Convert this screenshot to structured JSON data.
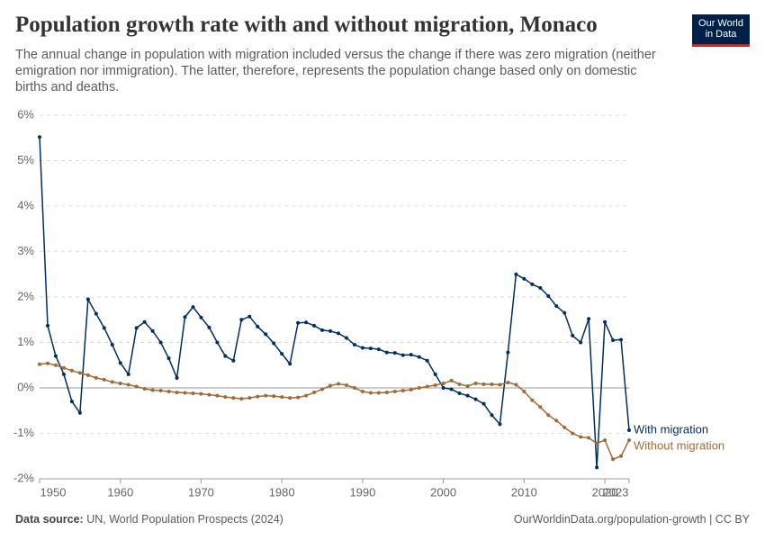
{
  "chart_data": {
    "type": "line",
    "title": "Population growth rate with and without migration, Monaco",
    "subtitle": "The annual change in population with migration included versus the change if there was zero migration (neither emigration nor immigration). The latter, therefore, represents the population change based only on domestic births and deaths.",
    "logo": [
      "Our World",
      "in Data"
    ],
    "source_label": "Data source:",
    "source": "UN, World Population Prospects (2024)",
    "credit": "OurWorldinData.org/population-growth | CC BY",
    "x": [
      1950,
      1951,
      1952,
      1953,
      1954,
      1955,
      1956,
      1957,
      1958,
      1959,
      1960,
      1961,
      1962,
      1963,
      1964,
      1965,
      1966,
      1967,
      1968,
      1969,
      1970,
      1971,
      1972,
      1973,
      1974,
      1975,
      1976,
      1977,
      1978,
      1979,
      1980,
      1981,
      1982,
      1983,
      1984,
      1985,
      1986,
      1987,
      1988,
      1989,
      1990,
      1991,
      1992,
      1993,
      1994,
      1995,
      1996,
      1997,
      1998,
      1999,
      2000,
      2001,
      2002,
      2003,
      2004,
      2005,
      2006,
      2007,
      2008,
      2009,
      2010,
      2011,
      2012,
      2013,
      2014,
      2015,
      2016,
      2017,
      2018,
      2019,
      2020,
      2021,
      2022,
      2023
    ],
    "series": [
      {
        "name": "With migration",
        "color": "#002e5e",
        "values": [
          5.52,
          1.37,
          0.7,
          0.3,
          -0.3,
          -0.55,
          1.95,
          1.63,
          1.32,
          0.95,
          0.55,
          0.3,
          1.32,
          1.45,
          1.25,
          1.0,
          0.65,
          0.22,
          1.56,
          1.78,
          1.55,
          1.33,
          1.0,
          0.7,
          0.6,
          1.5,
          1.57,
          1.35,
          1.18,
          0.98,
          0.75,
          0.53,
          1.43,
          1.44,
          1.37,
          1.27,
          1.25,
          1.2,
          1.1,
          0.95,
          0.88,
          0.87,
          0.85,
          0.78,
          0.77,
          0.72,
          0.73,
          0.68,
          0.6,
          0.3,
          0.0,
          -0.03,
          -0.12,
          -0.17,
          -0.25,
          -0.35,
          -0.6,
          -0.8,
          0.78,
          2.5,
          2.4,
          2.28,
          2.2,
          2.02,
          1.8,
          1.65,
          1.15,
          1.0,
          1.52,
          -1.75,
          1.45,
          1.05,
          1.06,
          -0.93
        ]
      },
      {
        "name": "Without migration",
        "color": "#a06a37",
        "values": [
          0.52,
          0.54,
          0.5,
          0.44,
          0.38,
          0.33,
          0.28,
          0.22,
          0.18,
          0.13,
          0.1,
          0.07,
          0.03,
          -0.02,
          -0.05,
          -0.06,
          -0.08,
          -0.1,
          -0.11,
          -0.12,
          -0.13,
          -0.15,
          -0.17,
          -0.2,
          -0.22,
          -0.24,
          -0.22,
          -0.19,
          -0.17,
          -0.18,
          -0.2,
          -0.22,
          -0.21,
          -0.17,
          -0.1,
          -0.03,
          0.05,
          0.09,
          0.06,
          0.0,
          -0.08,
          -0.11,
          -0.11,
          -0.1,
          -0.08,
          -0.06,
          -0.04,
          0.0,
          0.03,
          0.06,
          0.1,
          0.16,
          0.08,
          0.04,
          0.1,
          0.08,
          0.08,
          0.07,
          0.12,
          0.07,
          -0.08,
          -0.27,
          -0.42,
          -0.6,
          -0.72,
          -0.87,
          -1.0,
          -1.08,
          -1.1,
          -1.22,
          -1.15,
          -1.57,
          -1.5,
          -1.15
        ]
      }
    ],
    "xlim": [
      1950,
      2023
    ],
    "xticks": [
      1950,
      1960,
      1970,
      1980,
      1990,
      2000,
      2010,
      2020,
      2023
    ],
    "ylim": [
      -2,
      6
    ],
    "yticks": [
      {
        "value": -2,
        "label": "-2%"
      },
      {
        "value": -1,
        "label": "-1%"
      },
      {
        "value": 0,
        "label": "0%"
      },
      {
        "value": 1,
        "label": "1%"
      },
      {
        "value": 2,
        "label": "2%"
      },
      {
        "value": 3,
        "label": "3%"
      },
      {
        "value": 4,
        "label": "4%"
      },
      {
        "value": 5,
        "label": "5%"
      },
      {
        "value": 6,
        "label": "6%"
      }
    ],
    "grid": true
  }
}
